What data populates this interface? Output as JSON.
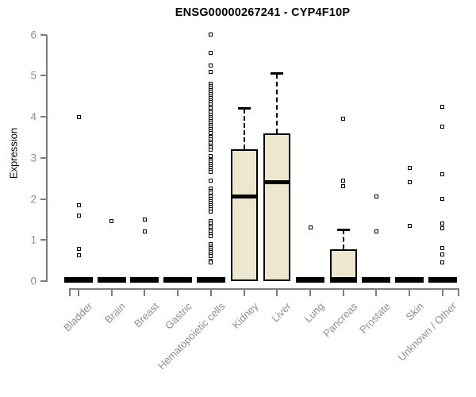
{
  "chart_data": {
    "type": "boxplot",
    "title": "ENSG00000267241 - CYP4F10P",
    "ylabel": "Expression",
    "ylim": [
      0,
      6
    ],
    "yticks": [
      0,
      1,
      2,
      3,
      4,
      5,
      6
    ],
    "grid": false,
    "legend": "none",
    "box_fill": "#ece8d0",
    "box_border": "#000000",
    "axis_color": "#7d7d7d",
    "text_color": "#8f8f8f",
    "categories": [
      "Bladder",
      "Brain",
      "Breast",
      "Gastric",
      "Hematopoietic cells",
      "Kidney",
      "Liver",
      "Lung",
      "Pancreas",
      "Prostate",
      "Skin",
      "Unknown / Other"
    ],
    "groups": [
      {
        "category": "Bladder",
        "q1": 0,
        "median": 0,
        "q3": 0,
        "whisker_low": 0,
        "whisker_high": 0,
        "outliers": [
          4.0,
          1.85,
          1.6,
          0.78,
          0.63
        ]
      },
      {
        "category": "Brain",
        "q1": 0,
        "median": 0,
        "q3": 0,
        "whisker_low": 0,
        "whisker_high": 0,
        "outliers": [
          1.45
        ]
      },
      {
        "category": "Breast",
        "q1": 0,
        "median": 0,
        "q3": 0,
        "whisker_low": 0,
        "whisker_high": 0,
        "outliers": [
          1.5,
          1.2
        ]
      },
      {
        "category": "Gastric",
        "q1": 0,
        "median": 0,
        "q3": 0,
        "whisker_low": 0,
        "whisker_high": 0,
        "outliers": []
      },
      {
        "category": "Hematopoietic cells",
        "q1": 0,
        "median": 0,
        "q3": 0,
        "whisker_low": 0,
        "whisker_high": 0,
        "outliers": [
          6.0,
          5.55,
          5.25,
          5.1,
          4.8,
          4.75,
          4.7,
          4.65,
          4.6,
          4.55,
          4.5,
          4.45,
          4.4,
          4.35,
          4.3,
          4.25,
          4.2,
          4.15,
          4.1,
          4.05,
          4.0,
          3.95,
          3.9,
          3.85,
          3.8,
          3.75,
          3.7,
          3.65,
          3.6,
          3.5,
          3.45,
          3.4,
          3.35,
          3.3,
          3.25,
          3.2,
          3.05,
          2.95,
          2.9,
          2.85,
          2.8,
          2.75,
          2.7,
          2.65,
          2.45,
          2.25,
          2.2,
          2.15,
          2.05,
          2.0,
          1.95,
          1.9,
          1.85,
          1.8,
          1.75,
          1.7,
          1.45,
          1.4,
          1.35,
          1.3,
          1.25,
          1.2,
          1.15,
          1.1,
          0.9,
          0.85,
          0.8,
          0.75,
          0.7,
          0.65,
          0.6,
          0.5,
          0.45
        ]
      },
      {
        "category": "Kidney",
        "q1": 0,
        "median": 2.05,
        "q3": 3.2,
        "whisker_low": 0,
        "whisker_high": 4.2,
        "outliers": []
      },
      {
        "category": "Liver",
        "q1": 0,
        "median": 2.4,
        "q3": 3.6,
        "whisker_low": 0,
        "whisker_high": 5.05,
        "outliers": []
      },
      {
        "category": "Lung",
        "q1": 0,
        "median": 0,
        "q3": 0,
        "whisker_low": 0,
        "whisker_high": 0,
        "outliers": [
          1.3
        ]
      },
      {
        "category": "Pancreas",
        "q1": 0,
        "median": 0,
        "q3": 0.78,
        "whisker_low": 0,
        "whisker_high": 1.25,
        "outliers": [
          3.95,
          2.45,
          2.3
        ]
      },
      {
        "category": "Prostate",
        "q1": 0,
        "median": 0,
        "q3": 0,
        "whisker_low": 0,
        "whisker_high": 0,
        "outliers": [
          2.05,
          1.2
        ]
      },
      {
        "category": "Skin",
        "q1": 0,
        "median": 0,
        "q3": 0,
        "whisker_low": 0,
        "whisker_high": 0,
        "outliers": [
          2.75,
          2.4,
          1.35
        ]
      },
      {
        "category": "Unknown / Other",
        "q1": 0,
        "median": 0,
        "q3": 0,
        "whisker_low": 0,
        "whisker_high": 0,
        "outliers": [
          4.25,
          3.75,
          2.6,
          2.0,
          1.4,
          1.28,
          0.8,
          0.65,
          0.45
        ]
      }
    ]
  }
}
